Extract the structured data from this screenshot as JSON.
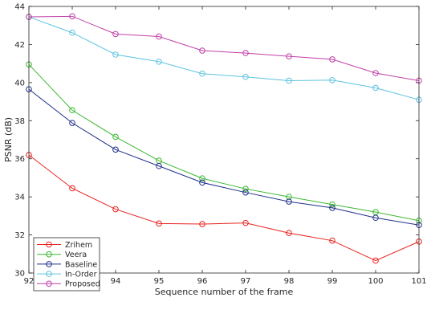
{
  "chart_data": {
    "type": "line",
    "title": "",
    "xlabel": "Sequence number of the frame",
    "ylabel": "PSNR (dB)",
    "xlim": [
      92,
      101
    ],
    "ylim": [
      30,
      44
    ],
    "x": [
      92,
      93,
      94,
      95,
      96,
      97,
      98,
      99,
      100,
      101
    ],
    "xticks": [
      "92",
      "93",
      "94",
      "95",
      "96",
      "97",
      "98",
      "99",
      "100",
      "101"
    ],
    "yticks": [
      "30",
      "32",
      "34",
      "36",
      "38",
      "40",
      "42",
      "44"
    ],
    "grid": false,
    "legend_position": "bottom-left",
    "marker": "circle",
    "series": [
      {
        "name": "Zrihem",
        "color": "#e8231f",
        "values": [
          36.2,
          34.45,
          33.35,
          32.6,
          32.57,
          32.63,
          32.1,
          31.7,
          30.65,
          31.65
        ]
      },
      {
        "name": "Veera",
        "color": "#3cb830",
        "values": [
          40.95,
          38.55,
          37.15,
          35.9,
          34.97,
          34.42,
          34.0,
          33.6,
          33.2,
          32.75
        ]
      },
      {
        "name": "Baseline",
        "color": "#1f2f8a",
        "values": [
          39.65,
          37.88,
          36.48,
          35.62,
          34.75,
          34.23,
          33.75,
          33.42,
          32.9,
          32.52
        ]
      },
      {
        "name": "In-Order",
        "color": "#5bc3e0",
        "values": [
          43.45,
          42.62,
          41.47,
          41.1,
          40.47,
          40.3,
          40.1,
          40.13,
          39.72,
          39.1
        ]
      },
      {
        "name": "Proposed",
        "color": "#c03fa7",
        "values": [
          43.45,
          43.48,
          42.55,
          42.42,
          41.68,
          41.55,
          41.38,
          41.22,
          40.5,
          40.1
        ]
      }
    ]
  }
}
